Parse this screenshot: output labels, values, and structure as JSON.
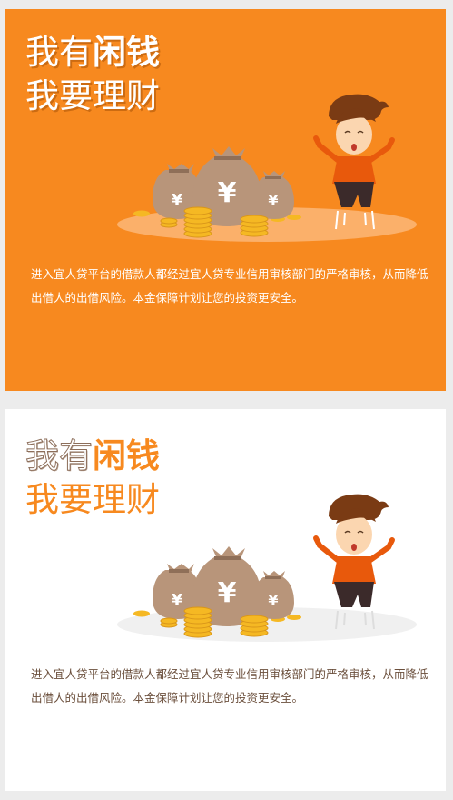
{
  "cards": [
    {
      "theme": "orange",
      "title_light": "我有",
      "title_bold": "闲钱",
      "title_line2": "我要理财",
      "description": "进入宜人贷平台的借款人都经过宜人贷专业信用审核部门的严格审核，从而降低出借人的出借风险。本金保障计划让您的投资更安全。",
      "money_bag_symbol": "¥"
    },
    {
      "theme": "white",
      "title_light": "我有",
      "title_bold": "闲钱",
      "title_line2": "我要理财",
      "description": "进入宜人贷平台的借款人都经过宜人贷专业信用审核部门的严格审核，从而降低出借人的出借风险。本金保障计划让您的投资更安全。",
      "money_bag_symbol": "¥"
    }
  ],
  "colors": {
    "orange": "#f7891f",
    "white": "#ffffff",
    "brown_bag": "#b8957a",
    "gold_coin": "#f5b823",
    "text_brown": "#6b4f3c"
  },
  "icons": [
    "money-bag-icon",
    "coin-stack-icon",
    "jumping-man-icon"
  ]
}
